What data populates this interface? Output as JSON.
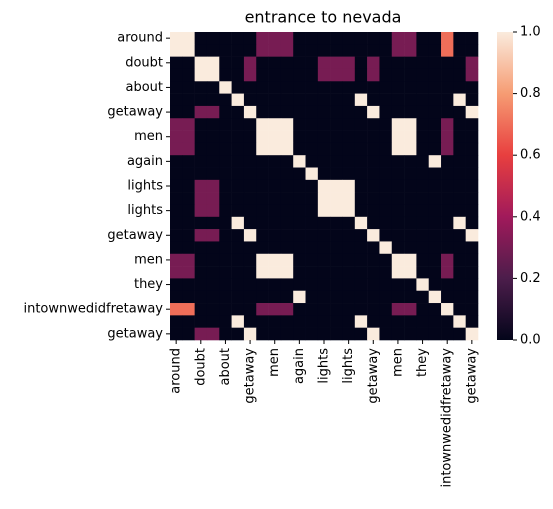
{
  "chart_data": {
    "type": "heatmap",
    "title": "entrance to nevada",
    "categories": [
      "around",
      null,
      "doubt",
      null,
      "about",
      null,
      "getaway",
      null,
      "men",
      null,
      "again",
      null,
      "lights",
      null,
      "lights",
      null,
      "getaway",
      null,
      "men",
      null,
      "they",
      null,
      "intownwedidfretaway",
      null,
      "getaway"
    ],
    "values": [
      [
        1,
        1,
        0,
        0,
        0,
        0,
        0,
        0.3,
        0.3,
        0.3,
        0,
        0,
        0,
        0,
        0,
        0,
        0,
        0,
        0.3,
        0.3,
        0,
        0,
        0.7,
        0,
        0
      ],
      [
        1,
        1,
        0,
        0,
        0,
        0,
        0,
        0.3,
        0.3,
        0.3,
        0,
        0,
        0,
        0,
        0,
        0,
        0,
        0,
        0.3,
        0.3,
        0,
        0,
        0.7,
        0,
        0
      ],
      [
        0,
        0,
        1,
        1,
        0,
        0,
        0.3,
        0,
        0,
        0,
        0,
        0,
        0.3,
        0.3,
        0.3,
        0,
        0.3,
        0,
        0,
        0,
        0,
        0,
        0,
        0,
        0.3
      ],
      [
        0,
        0,
        1,
        1,
        0,
        0,
        0.3,
        0,
        0,
        0,
        0,
        0,
        0.3,
        0.3,
        0.3,
        0,
        0.3,
        0,
        0,
        0,
        0,
        0,
        0,
        0,
        0.3
      ],
      [
        0,
        0,
        0,
        0,
        1,
        0,
        0,
        0,
        0,
        0,
        0,
        0,
        0,
        0,
        0,
        0,
        0,
        0,
        0,
        0,
        0,
        0,
        0,
        0,
        0
      ],
      [
        0,
        0,
        0,
        0,
        0,
        1,
        0,
        0,
        0,
        0,
        0,
        0,
        0,
        0,
        0,
        1,
        0,
        0,
        0,
        0,
        0,
        0,
        0,
        1,
        0
      ],
      [
        0,
        0,
        0.3,
        0.3,
        0,
        0,
        1,
        0,
        0,
        0,
        0,
        0,
        0,
        0,
        0,
        0,
        1,
        0,
        0,
        0,
        0,
        0,
        0,
        0,
        1
      ],
      [
        0.3,
        0.3,
        0,
        0,
        0,
        0,
        0,
        1,
        1,
        1,
        0,
        0,
        0,
        0,
        0,
        0,
        0,
        0,
        1,
        1,
        0,
        0,
        0.3,
        0,
        0
      ],
      [
        0.3,
        0.3,
        0,
        0,
        0,
        0,
        0,
        1,
        1,
        1,
        0,
        0,
        0,
        0,
        0,
        0,
        0,
        0,
        1,
        1,
        0,
        0,
        0.3,
        0,
        0
      ],
      [
        0.3,
        0.3,
        0,
        0,
        0,
        0,
        0,
        1,
        1,
        1,
        0,
        0,
        0,
        0,
        0,
        0,
        0,
        0,
        1,
        1,
        0,
        0,
        0.3,
        0,
        0
      ],
      [
        0,
        0,
        0,
        0,
        0,
        0,
        0,
        0,
        0,
        0,
        1,
        0,
        0,
        0,
        0,
        0,
        0,
        0,
        0,
        0,
        0,
        1,
        0,
        0,
        0
      ],
      [
        0,
        0,
        0,
        0,
        0,
        0,
        0,
        0,
        0,
        0,
        0,
        1,
        0,
        0,
        0,
        0,
        0,
        0,
        0,
        0,
        0,
        0,
        0,
        0,
        0
      ],
      [
        0,
        0,
        0.3,
        0.3,
        0,
        0,
        0,
        0,
        0,
        0,
        0,
        0,
        1,
        1,
        1,
        0,
        0,
        0,
        0,
        0,
        0,
        0,
        0,
        0,
        0
      ],
      [
        0,
        0,
        0.3,
        0.3,
        0,
        0,
        0,
        0,
        0,
        0,
        0,
        0,
        1,
        1,
        1,
        0,
        0,
        0,
        0,
        0,
        0,
        0,
        0,
        0,
        0
      ],
      [
        0,
        0,
        0.3,
        0.3,
        0,
        0,
        0,
        0,
        0,
        0,
        0,
        0,
        1,
        1,
        1,
        0,
        0,
        0,
        0,
        0,
        0,
        0,
        0,
        0,
        0
      ],
      [
        0,
        0,
        0,
        0,
        0,
        1,
        0,
        0,
        0,
        0,
        0,
        0,
        0,
        0,
        0,
        1,
        0,
        0,
        0,
        0,
        0,
        0,
        0,
        1,
        0
      ],
      [
        0,
        0,
        0.3,
        0.3,
        0,
        0,
        1,
        0,
        0,
        0,
        0,
        0,
        0,
        0,
        0,
        0,
        1,
        0,
        0,
        0,
        0,
        0,
        0,
        0,
        1
      ],
      [
        0,
        0,
        0,
        0,
        0,
        0,
        0,
        0,
        0,
        0,
        0,
        0,
        0,
        0,
        0,
        0,
        0,
        1,
        0,
        0,
        0,
        0,
        0,
        0,
        0
      ],
      [
        0.3,
        0.3,
        0,
        0,
        0,
        0,
        0,
        1,
        1,
        1,
        0,
        0,
        0,
        0,
        0,
        0,
        0,
        0,
        1,
        1,
        0,
        0,
        0.3,
        0,
        0
      ],
      [
        0.3,
        0.3,
        0,
        0,
        0,
        0,
        0,
        1,
        1,
        1,
        0,
        0,
        0,
        0,
        0,
        0,
        0,
        0,
        1,
        1,
        0,
        0,
        0.3,
        0,
        0
      ],
      [
        0,
        0,
        0,
        0,
        0,
        0,
        0,
        0,
        0,
        0,
        0,
        0,
        0,
        0,
        0,
        0,
        0,
        0,
        0,
        0,
        1,
        0,
        0,
        0,
        0
      ],
      [
        0,
        0,
        0,
        0,
        0,
        0,
        0,
        0,
        0,
        0,
        1,
        0,
        0,
        0,
        0,
        0,
        0,
        0,
        0,
        0,
        0,
        1,
        0,
        0,
        0
      ],
      [
        0.7,
        0.7,
        0,
        0,
        0,
        0,
        0,
        0.3,
        0.3,
        0.3,
        0,
        0,
        0,
        0,
        0,
        0,
        0,
        0,
        0.3,
        0.3,
        0,
        0,
        1,
        0,
        0
      ],
      [
        0,
        0,
        0,
        0,
        0,
        1,
        0,
        0,
        0,
        0,
        0,
        0,
        0,
        0,
        0,
        1,
        0,
        0,
        0,
        0,
        0,
        0,
        0,
        1,
        0
      ],
      [
        0,
        0,
        0.3,
        0.3,
        0,
        0,
        1,
        0,
        0,
        0,
        0,
        0,
        0,
        0,
        0,
        0,
        1,
        0,
        0,
        0,
        0,
        0,
        0,
        0,
        1
      ]
    ],
    "colormap": [
      "#03051a",
      "#4c1d4b",
      "#a11a5b",
      "#e83f3f",
      "#f69c73",
      "#faebdd"
    ],
    "clim": [
      0,
      1
    ],
    "cticks": [
      {
        "value": 0,
        "label": "0.0"
      },
      {
        "value": 0.2,
        "label": "0.2"
      },
      {
        "value": 0.4,
        "label": "0.4"
      },
      {
        "value": 0.6,
        "label": "0.6"
      },
      {
        "value": 0.8,
        "label": "0.8"
      },
      {
        "value": 1,
        "label": "1.0"
      }
    ]
  }
}
